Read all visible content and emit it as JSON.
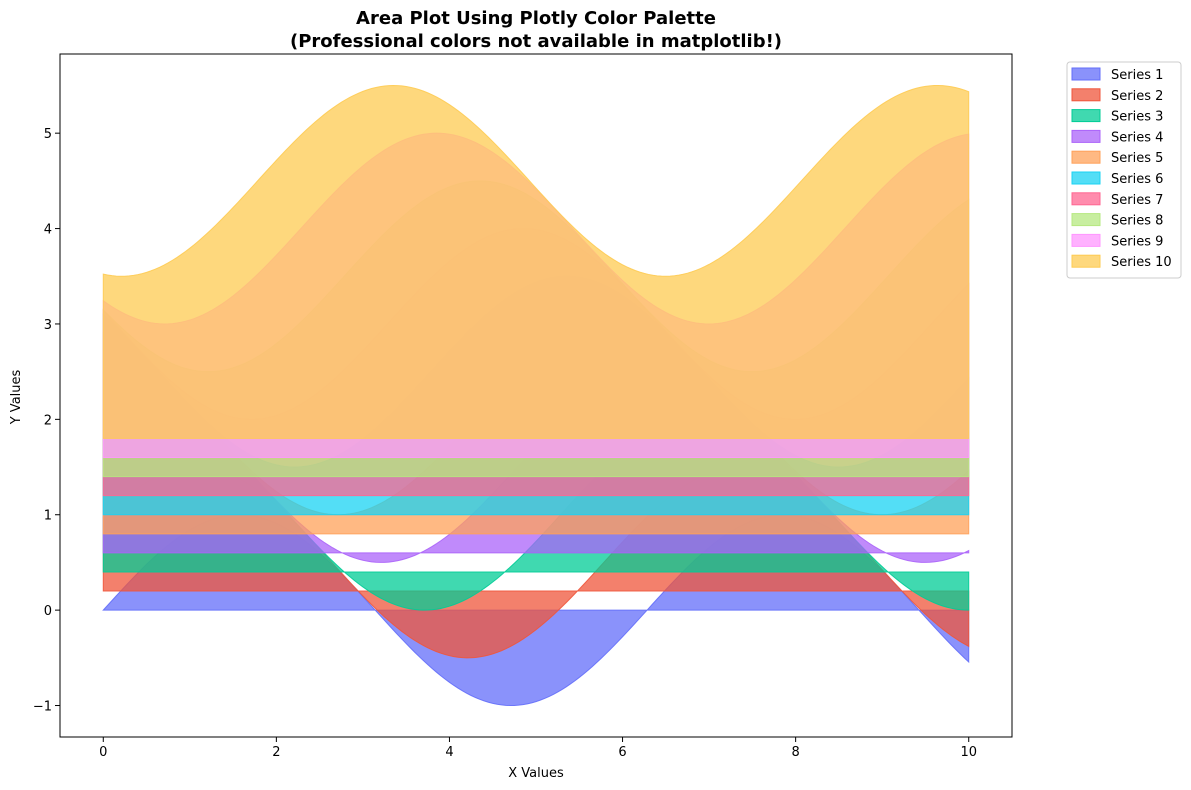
{
  "chart_data": {
    "type": "area",
    "title": "Area Plot Using Plotly Color Palette",
    "subtitle": "(Professional colors not available in matplotlib!)",
    "xlabel": "X Values",
    "ylabel": "Y Values",
    "xlim": [
      -0.5,
      10.5
    ],
    "ylim": [
      -1.33,
      5.83
    ],
    "xticks": [
      0,
      2,
      4,
      6,
      8,
      10
    ],
    "yticks": [
      -1,
      0,
      1,
      2,
      3,
      4,
      5
    ],
    "x_range": [
      0,
      10
    ],
    "grid": false,
    "legend_position": "outside-right",
    "alpha": 0.75,
    "series": [
      {
        "name": "Series 1",
        "color": "#636EFA",
        "baseline": 0.0,
        "offset": 0.0,
        "amplitude": 1.0,
        "phase": 0.0
      },
      {
        "name": "Series 2",
        "color": "#EF553B",
        "baseline": 0.2,
        "offset": 0.5,
        "amplitude": 1.0,
        "phase": 0.5
      },
      {
        "name": "Series 3",
        "color": "#00CC96",
        "baseline": 0.4,
        "offset": 1.0,
        "amplitude": 1.0,
        "phase": 1.0
      },
      {
        "name": "Series 4",
        "color": "#AB63FA",
        "baseline": 0.6,
        "offset": 1.5,
        "amplitude": 1.0,
        "phase": 1.5
      },
      {
        "name": "Series 5",
        "color": "#FFA15A",
        "baseline": 0.8,
        "offset": 2.0,
        "amplitude": 1.0,
        "phase": 2.0
      },
      {
        "name": "Series 6",
        "color": "#19D3F3",
        "baseline": 1.0,
        "offset": 2.5,
        "amplitude": 1.0,
        "phase": 2.5
      },
      {
        "name": "Series 7",
        "color": "#FF6692",
        "baseline": 1.2,
        "offset": 3.0,
        "amplitude": 1.0,
        "phase": 3.0
      },
      {
        "name": "Series 8",
        "color": "#B6E880",
        "baseline": 1.4,
        "offset": 3.5,
        "amplitude": 1.0,
        "phase": 3.5
      },
      {
        "name": "Series 9",
        "color": "#FF97FF",
        "baseline": 1.6,
        "offset": 4.0,
        "amplitude": 1.0,
        "phase": 4.0
      },
      {
        "name": "Series 10",
        "color": "#FECB52",
        "baseline": 1.8,
        "offset": 4.5,
        "amplitude": 1.0,
        "phase": 4.5
      }
    ]
  }
}
